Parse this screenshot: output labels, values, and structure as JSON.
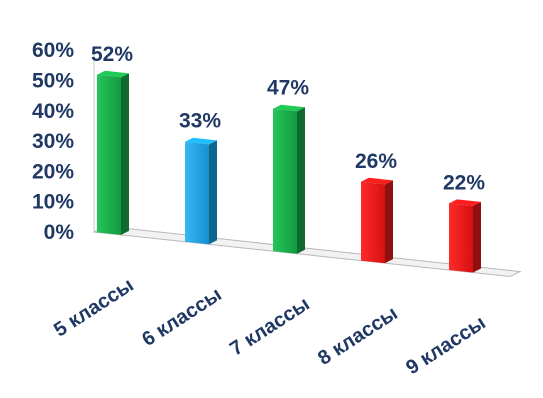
{
  "chart_data": {
    "type": "bar",
    "categories": [
      "5 классы",
      "6 классы",
      "7 классы",
      "8 классы",
      "9 классы"
    ],
    "values": [
      52,
      33,
      47,
      26,
      22
    ],
    "data_labels": [
      "52%",
      "33%",
      "47%",
      "26%",
      "22%"
    ],
    "bar_colors": [
      "#1aab4a",
      "#1aa3e6",
      "#1aab4a",
      "#e81919",
      "#e81919"
    ],
    "y_ticks": [
      0,
      10,
      20,
      30,
      40,
      50,
      60
    ],
    "y_tick_labels": [
      "0%",
      "10%",
      "20%",
      "30%",
      "40%",
      "50%",
      "60%"
    ],
    "ylim": [
      0,
      60
    ],
    "title": "",
    "xlabel": "",
    "ylabel": "",
    "grid": false,
    "legend": "none",
    "three_d": true
  }
}
